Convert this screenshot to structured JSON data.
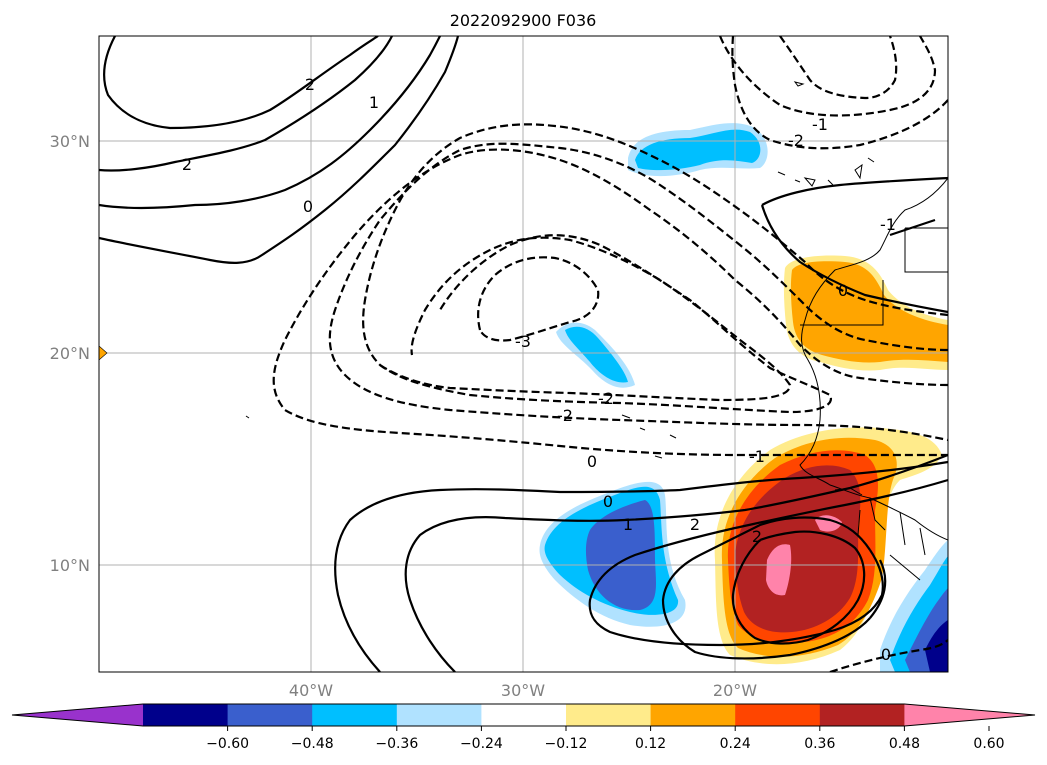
{
  "title": "2022092900 F036",
  "map": {
    "lat_labels": [
      "30°N",
      "20°N",
      "10°N"
    ],
    "lon_labels": [
      "40°W",
      "30°W",
      "20°W"
    ],
    "extent": {
      "lon": [
        -50,
        -10
      ],
      "lat": [
        5,
        35
      ]
    },
    "gridlines": true
  },
  "colorbar": {
    "ticks": [
      "−0.60",
      "−0.48",
      "−0.36",
      "−0.24",
      "−0.12",
      "0.12",
      "0.24",
      "0.36",
      "0.48",
      "0.60"
    ],
    "colors": [
      "#9932cc",
      "#00008b",
      "#3a5fcd",
      "#00bfff",
      "#b0e2ff",
      "#ffffff",
      "#ffeb8b",
      "#ffa500",
      "#ff4500",
      "#b22222",
      "#ff83aa"
    ],
    "extend": "both"
  },
  "contour_labels": [
    "2",
    "1",
    "2",
    "0",
    "-3",
    "-2",
    "-2",
    "-2",
    "0",
    "-1",
    "-1",
    "0",
    "0",
    "1",
    "2",
    "2",
    "-1",
    "0"
  ]
}
